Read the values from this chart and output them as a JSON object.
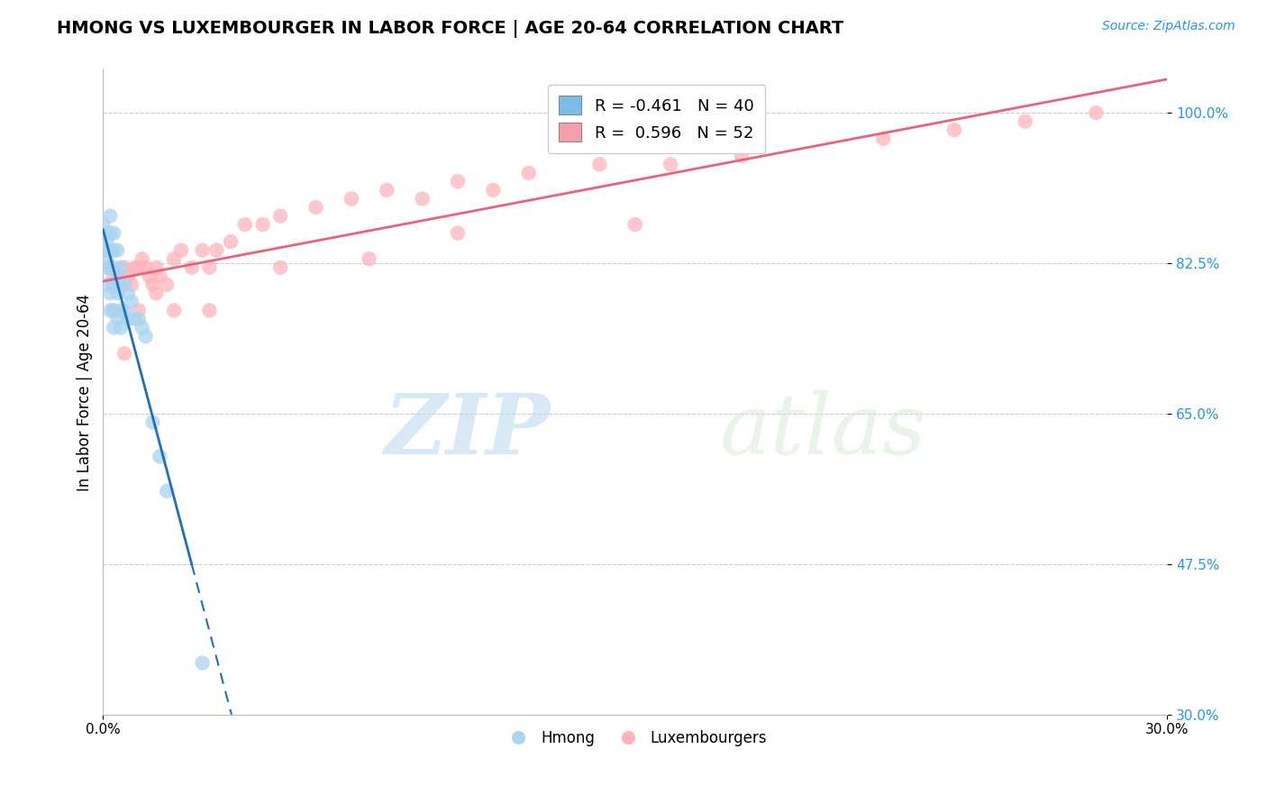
{
  "title": "HMONG VS LUXEMBOURGER IN LABOR FORCE | AGE 20-64 CORRELATION CHART",
  "source_text": "Source: ZipAtlas.com",
  "ylabel": "In Labor Force | Age 20-64",
  "xmin": 0.0,
  "xmax": 0.3,
  "ymin": 0.3,
  "ymax": 1.05,
  "yticks": [
    0.3,
    0.475,
    0.65,
    0.825,
    1.0
  ],
  "ytick_labels": [
    "30.0%",
    "47.5%",
    "65.0%",
    "82.5%",
    "100.0%"
  ],
  "xticks": [
    0.0,
    0.3
  ],
  "xtick_labels": [
    "0.0%",
    "30.0%"
  ],
  "legend_r_hmong": "R = -0.461   N = 40",
  "legend_r_lux": "R =  0.596   N = 52",
  "legend_label_hmong": "Hmong",
  "legend_label_lux": "Luxembourgers",
  "watermark_zip": "ZIP",
  "watermark_atlas": "atlas",
  "hmong_color": "#aad4f0",
  "lux_color": "#ffb3ba",
  "hmong_line_color": "#1f6fbf",
  "lux_line_color": "#e8637a",
  "legend_hmong_color": "#7abde8",
  "legend_lux_color": "#f4a0aa",
  "hmong_x": [
    0.0,
    0.0,
    0.001,
    0.001,
    0.001,
    0.001,
    0.001,
    0.002,
    0.002,
    0.002,
    0.002,
    0.002,
    0.002,
    0.003,
    0.003,
    0.003,
    0.003,
    0.003,
    0.003,
    0.004,
    0.004,
    0.004,
    0.004,
    0.005,
    0.005,
    0.005,
    0.005,
    0.006,
    0.006,
    0.007,
    0.007,
    0.008,
    0.009,
    0.01,
    0.011,
    0.012,
    0.014,
    0.016,
    0.018,
    0.028
  ],
  "hmong_y": [
    0.87,
    0.84,
    0.86,
    0.83,
    0.85,
    0.82,
    0.8,
    0.88,
    0.86,
    0.84,
    0.82,
    0.79,
    0.77,
    0.86,
    0.84,
    0.82,
    0.8,
    0.77,
    0.75,
    0.84,
    0.81,
    0.79,
    0.76,
    0.82,
    0.8,
    0.77,
    0.75,
    0.8,
    0.77,
    0.79,
    0.76,
    0.78,
    0.76,
    0.76,
    0.75,
    0.74,
    0.64,
    0.6,
    0.56,
    0.36
  ],
  "lux_x": [
    0.001,
    0.002,
    0.003,
    0.003,
    0.004,
    0.005,
    0.006,
    0.007,
    0.008,
    0.009,
    0.01,
    0.011,
    0.012,
    0.013,
    0.014,
    0.015,
    0.016,
    0.018,
    0.02,
    0.022,
    0.025,
    0.028,
    0.03,
    0.032,
    0.036,
    0.04,
    0.045,
    0.05,
    0.06,
    0.07,
    0.08,
    0.09,
    0.1,
    0.11,
    0.12,
    0.14,
    0.16,
    0.18,
    0.22,
    0.24,
    0.26,
    0.003,
    0.006,
    0.01,
    0.015,
    0.02,
    0.03,
    0.05,
    0.075,
    0.1,
    0.15,
    0.28
  ],
  "lux_y": [
    0.84,
    0.82,
    0.81,
    0.8,
    0.81,
    0.8,
    0.82,
    0.81,
    0.8,
    0.82,
    0.82,
    0.83,
    0.82,
    0.81,
    0.8,
    0.82,
    0.81,
    0.8,
    0.83,
    0.84,
    0.82,
    0.84,
    0.82,
    0.84,
    0.85,
    0.87,
    0.87,
    0.88,
    0.89,
    0.9,
    0.91,
    0.9,
    0.92,
    0.91,
    0.93,
    0.94,
    0.94,
    0.95,
    0.97,
    0.98,
    0.99,
    0.77,
    0.72,
    0.77,
    0.79,
    0.77,
    0.77,
    0.82,
    0.83,
    0.86,
    0.87,
    1.0
  ],
  "background_color": "#ffffff",
  "grid_color": "#cccccc",
  "tick_color_right": "#2196F3",
  "title_fontsize": 14,
  "source_fontsize": 10
}
